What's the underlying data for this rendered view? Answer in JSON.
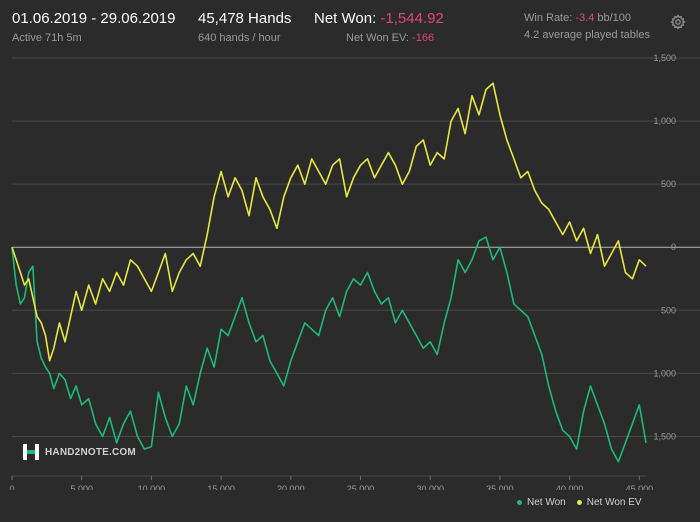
{
  "header": {
    "date_range": "01.06.2019 - 29.06.2019",
    "active": "Active 71h 5m",
    "hands": "45,478 Hands",
    "hands_rate": "640 hands / hour",
    "net_won_label": "Net Won:",
    "net_won_value": "-1,544.92",
    "net_won_ev_label": "Net Won  EV:",
    "net_won_ev_value": "-166",
    "win_rate_label": "Win Rate:",
    "win_rate_value": "-3.4",
    "win_rate_unit": "bb/100",
    "avg_tables": "4.2 average played tables"
  },
  "logo": {
    "text": "HAND2NOTE.COM"
  },
  "icons": {
    "settings": "gear-icon",
    "logo": "hand2note-logo-icon"
  },
  "colors": {
    "background": "#2b2b2b",
    "net_won": "#1db97a",
    "net_won_ev": "#e8e640",
    "negative": "#e0457a",
    "grid": "#474747",
    "zero_line": "#b8b8b8"
  },
  "chart_data": {
    "type": "line",
    "xlim": [
      0,
      45478
    ],
    "ylim": [
      -1750,
      1500
    ],
    "x_ticks": [
      0,
      5000,
      10000,
      15000,
      20000,
      25000,
      30000,
      35000,
      40000,
      45000
    ],
    "x_tick_labels": [
      "0",
      "5,000",
      "10,000",
      "15,000",
      "20,000",
      "25,000",
      "30,000",
      "35,000",
      "40,000",
      "45,000"
    ],
    "y_ticks": [
      1500,
      1000,
      500,
      0,
      -500,
      -1000,
      -1500
    ],
    "y_tick_labels": [
      "1,500",
      "1,000",
      "500",
      "0",
      "500",
      "1,000",
      "1,500"
    ],
    "grid": true,
    "legend_position": "bottom-right",
    "series": [
      {
        "name": "Net Won",
        "color": "#1db97a",
        "x": [
          0,
          300,
          600,
          900,
          1200,
          1500,
          1800,
          2100,
          2400,
          2700,
          3000,
          3400,
          3800,
          4200,
          4600,
          5000,
          5500,
          6000,
          6500,
          7000,
          7500,
          8000,
          8500,
          9000,
          9500,
          10000,
          10500,
          11000,
          11500,
          12000,
          12500,
          13000,
          13500,
          14000,
          14500,
          15000,
          15500,
          16000,
          16500,
          17000,
          17500,
          18000,
          18500,
          19000,
          19500,
          20000,
          20500,
          21000,
          21500,
          22000,
          22500,
          23000,
          23500,
          24000,
          24500,
          25000,
          25500,
          26000,
          26500,
          27000,
          27500,
          28000,
          28500,
          29000,
          29500,
          30000,
          30500,
          31000,
          31500,
          32000,
          32500,
          33000,
          33500,
          34000,
          34500,
          35000,
          35500,
          36000,
          36500,
          37000,
          37500,
          38000,
          38500,
          39000,
          39500,
          40000,
          40500,
          41000,
          41500,
          42000,
          42500,
          43000,
          43500,
          44000,
          44500,
          45000,
          45478
        ],
        "y": [
          0,
          -300,
          -450,
          -400,
          -200,
          -150,
          -750,
          -880,
          -950,
          -1000,
          -1120,
          -1000,
          -1050,
          -1200,
          -1100,
          -1250,
          -1200,
          -1400,
          -1500,
          -1350,
          -1550,
          -1400,
          -1300,
          -1500,
          -1600,
          -1580,
          -1150,
          -1350,
          -1500,
          -1400,
          -1100,
          -1250,
          -1000,
          -800,
          -950,
          -650,
          -700,
          -550,
          -400,
          -600,
          -750,
          -700,
          -900,
          -1000,
          -1100,
          -900,
          -750,
          -600,
          -650,
          -700,
          -500,
          -400,
          -550,
          -350,
          -250,
          -300,
          -200,
          -350,
          -450,
          -400,
          -600,
          -500,
          -600,
          -700,
          -800,
          -750,
          -850,
          -600,
          -400,
          -100,
          -200,
          -100,
          50,
          80,
          -100,
          0,
          -200,
          -450,
          -500,
          -550,
          -700,
          -850,
          -1100,
          -1300,
          -1450,
          -1500,
          -1600,
          -1300,
          -1100,
          -1250,
          -1400,
          -1600,
          -1700,
          -1550,
          -1400,
          -1250,
          -1550
        ]
      },
      {
        "name": "Net Won  EV",
        "color": "#e8e640",
        "x": [
          0,
          300,
          600,
          900,
          1200,
          1500,
          1800,
          2100,
          2400,
          2700,
          3000,
          3400,
          3800,
          4200,
          4600,
          5000,
          5500,
          6000,
          6500,
          7000,
          7500,
          8000,
          8500,
          9000,
          9500,
          10000,
          10500,
          11000,
          11500,
          12000,
          12500,
          13000,
          13500,
          14000,
          14500,
          15000,
          15500,
          16000,
          16500,
          17000,
          17500,
          18000,
          18500,
          19000,
          19500,
          20000,
          20500,
          21000,
          21500,
          22000,
          22500,
          23000,
          23500,
          24000,
          24500,
          25000,
          25500,
          26000,
          26500,
          27000,
          27500,
          28000,
          28500,
          29000,
          29500,
          30000,
          30500,
          31000,
          31500,
          32000,
          32500,
          33000,
          33500,
          34000,
          34500,
          35000,
          35500,
          36000,
          36500,
          37000,
          37500,
          38000,
          38500,
          39000,
          39500,
          40000,
          40500,
          41000,
          41500,
          42000,
          42500,
          43000,
          43500,
          44000,
          44500,
          45000,
          45478
        ],
        "y": [
          0,
          -100,
          -200,
          -300,
          -250,
          -400,
          -550,
          -600,
          -700,
          -900,
          -800,
          -600,
          -750,
          -550,
          -350,
          -500,
          -300,
          -450,
          -250,
          -350,
          -200,
          -300,
          -100,
          -150,
          -250,
          -350,
          -200,
          -50,
          -350,
          -200,
          -100,
          -50,
          -150,
          100,
          400,
          600,
          400,
          550,
          450,
          250,
          550,
          400,
          300,
          150,
          400,
          550,
          650,
          500,
          700,
          600,
          500,
          650,
          700,
          400,
          550,
          650,
          700,
          550,
          650,
          750,
          650,
          500,
          600,
          800,
          850,
          650,
          750,
          700,
          1000,
          1100,
          900,
          1200,
          1050,
          1250,
          1300,
          1050,
          850,
          700,
          550,
          600,
          450,
          350,
          300,
          200,
          100,
          200,
          50,
          150,
          -50,
          100,
          -150,
          -50,
          50,
          -200,
          -250,
          -100,
          -150
        ]
      }
    ]
  }
}
